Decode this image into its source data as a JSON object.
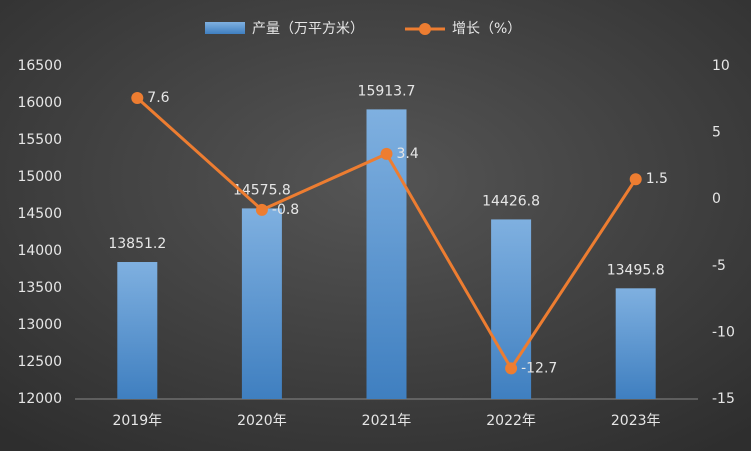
{
  "chart_data": {
    "type": "bar-line",
    "categories": [
      "2019年",
      "2020年",
      "2021年",
      "2022年",
      "2023年"
    ],
    "series": [
      {
        "name": "产量（万平方米）",
        "type": "bar",
        "color": "#5b9bd5",
        "values": [
          13851.2,
          14575.8,
          15913.7,
          14426.8,
          13495.8
        ]
      },
      {
        "name": "增长（%）",
        "type": "line",
        "axis": "y2",
        "color": "#ed7d31",
        "values": [
          7.6,
          -0.8,
          3.4,
          -12.7,
          1.5
        ]
      }
    ],
    "ylim": [
      12000,
      16500
    ],
    "yticks": [
      12000,
      12500,
      13000,
      13500,
      14000,
      14500,
      15000,
      15500,
      16000,
      16500
    ],
    "y2lim": [
      -15,
      10
    ],
    "y2ticks": [
      -15,
      -10,
      -5,
      0,
      5,
      10
    ],
    "grid": false
  }
}
